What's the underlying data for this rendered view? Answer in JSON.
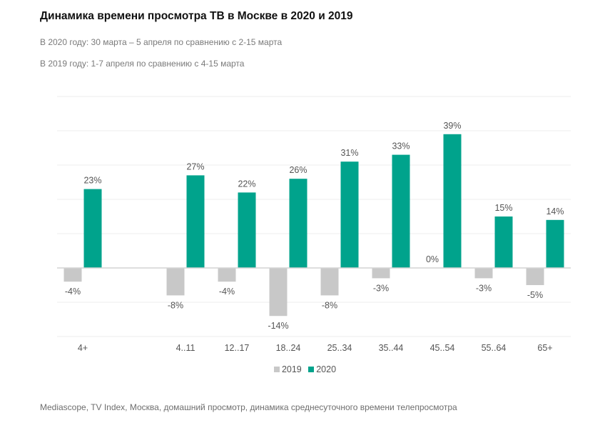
{
  "header": {
    "title": "Динамика времени просмотра ТВ в Москве в 2020 и 2019",
    "subtitle_1": "В 2020 году: 30 марта – 5 апреля по сравнению с 2-15 марта",
    "subtitle_2": "В 2019 году: 1-7 апреля по сравнению с 4-15 марта"
  },
  "footer": {
    "source": "Mediascope, TV Index, Москва, домашний просмотр, динамика среднесуточного времени телепросмотра"
  },
  "colors": {
    "series_2019": "#c8c8c8",
    "series_2020": "#00a38c",
    "grid": "#ececec",
    "zero_line": "#d4d4d4",
    "label": "#555555"
  },
  "chart_data": {
    "type": "bar",
    "title": "Динамика времени просмотра ТВ в Москве в 2020 и 2019",
    "xlabel": "",
    "ylabel": "",
    "categories": [
      "4+",
      "",
      "4..11",
      "12..17",
      "18..24",
      "25..34",
      "35..44",
      "45..54",
      "55..64",
      "65+"
    ],
    "series": [
      {
        "name": "2019",
        "values": [
          -4,
          null,
          -8,
          -4,
          -14,
          -8,
          -3,
          0,
          -3,
          -5
        ],
        "labels": [
          "-4%",
          "",
          "-8%",
          "-4%",
          "-14%",
          "-8%",
          "-3%",
          "0%",
          "-3%",
          "-5%"
        ]
      },
      {
        "name": "2020",
        "values": [
          23,
          null,
          27,
          22,
          26,
          31,
          33,
          39,
          15,
          14
        ],
        "labels": [
          "23%",
          "",
          "27%",
          "22%",
          "26%",
          "31%",
          "33%",
          "39%",
          "15%",
          "14%"
        ]
      }
    ],
    "ylim": [
      -20,
      50
    ],
    "y_grid_step": 10,
    "grid": true,
    "y_tick_labels_visible": false,
    "legend": {
      "position": "bottom-center",
      "entries": [
        "2019",
        "2020"
      ]
    }
  }
}
